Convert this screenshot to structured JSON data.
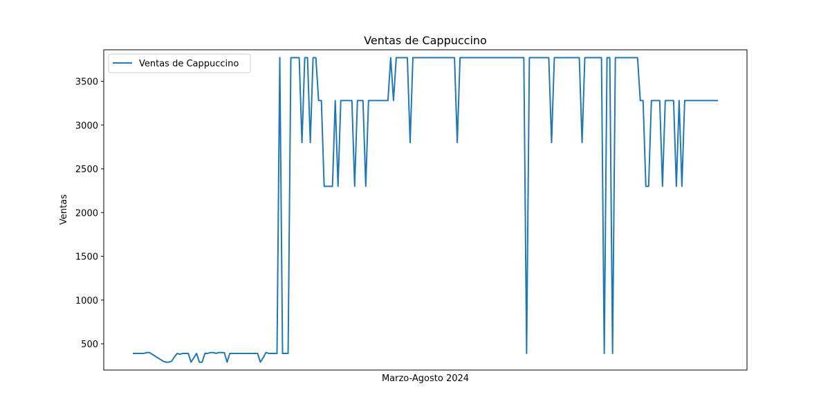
{
  "chart_data": {
    "type": "line",
    "title": "Ventas de Cappuccino",
    "xlabel": "Marzo-Agosto 2024",
    "ylabel": "Ventas",
    "ylim": [
      200,
      3860
    ],
    "yticks": [
      500,
      1000,
      1500,
      2000,
      2500,
      3000,
      3500
    ],
    "grid": false,
    "legend_position": "upper-left",
    "series": [
      {
        "name": "Ventas de Cappuccino",
        "color": "#1f77b4",
        "values": [
          390,
          390,
          390,
          390,
          390,
          400,
          400,
          380,
          360,
          340,
          320,
          300,
          290,
          290,
          300,
          350,
          390,
          380,
          390,
          390,
          390,
          290,
          340,
          390,
          290,
          290,
          390,
          390,
          400,
          400,
          390,
          400,
          400,
          400,
          290,
          390,
          390,
          390,
          390,
          390,
          390,
          390,
          390,
          390,
          390,
          390,
          290,
          340,
          400,
          390,
          390,
          390,
          390,
          3770,
          390,
          390,
          390,
          3770,
          3770,
          3770,
          3770,
          2800,
          3770,
          3770,
          2800,
          3770,
          3770,
          3280,
          3280,
          2300,
          2300,
          2300,
          2300,
          3280,
          2300,
          3280,
          3280,
          3280,
          3280,
          3280,
          2300,
          3280,
          3280,
          3280,
          2300,
          3280,
          3280,
          3280,
          3280,
          3280,
          3280,
          3280,
          3280,
          3770,
          3280,
          3770,
          3770,
          3770,
          3770,
          3770,
          2800,
          3770,
          3770,
          3770,
          3770,
          3770,
          3770,
          3770,
          3770,
          3770,
          3770,
          3770,
          3770,
          3770,
          3770,
          3770,
          3770,
          2800,
          3770,
          3770,
          3770,
          3770,
          3770,
          3770,
          3770,
          3770,
          3770,
          3770,
          3770,
          3770,
          3770,
          3770,
          3770,
          3770,
          3770,
          3770,
          3770,
          3770,
          3770,
          3770,
          3770,
          3770,
          390,
          3770,
          3770,
          3770,
          3770,
          3770,
          3770,
          3770,
          3770,
          2800,
          3770,
          3770,
          3770,
          3770,
          3770,
          3770,
          3770,
          3770,
          3770,
          3770,
          2800,
          3770,
          3770,
          3770,
          3770,
          3770,
          3770,
          3770,
          390,
          3770,
          3770,
          390,
          3770,
          3770,
          3770,
          3770,
          3770,
          3770,
          3770,
          3770,
          3770,
          3280,
          3280,
          2300,
          2300,
          3280,
          3280,
          3280,
          3280,
          2300,
          3280,
          3280,
          3280,
          3280,
          2300,
          3280,
          2300,
          3280,
          3280,
          3280,
          3280,
          3280,
          3280,
          3280,
          3280,
          3280,
          3280,
          3280,
          3280,
          3280
        ]
      }
    ]
  }
}
